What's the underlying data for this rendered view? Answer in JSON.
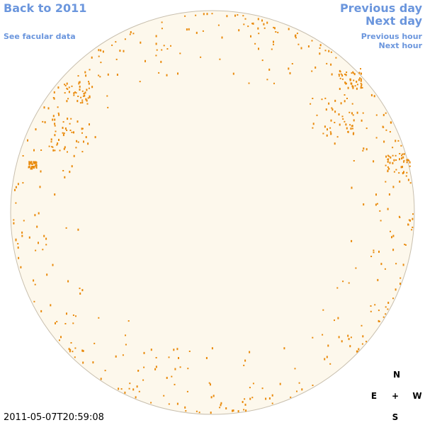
{
  "nav": {
    "back": "Back to 2011",
    "facular": "See facular data",
    "previous_day": "Previous day",
    "next_day": "Next day",
    "previous_hour": "Previous hour",
    "next_hour": "Next hour"
  },
  "timestamp": "2011-05-07T20:59:08",
  "compass": {
    "north": "N",
    "east": "E",
    "center": "+",
    "west": "W",
    "south": "S"
  }
}
